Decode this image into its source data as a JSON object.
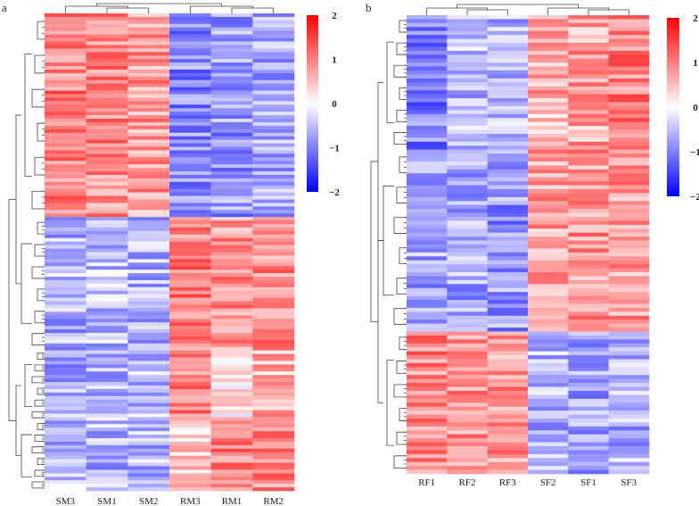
{
  "panel_a_letter": "a",
  "panel_b_letter": "b",
  "colorbar_ticks": [
    "2",
    "1",
    "0",
    "−1",
    "−2"
  ],
  "colorscale": {
    "low": "#0000ff",
    "mid": "#ffffff",
    "high": "#ff0000",
    "min": -2,
    "max": 2
  },
  "chart_data": [
    {
      "type": "heatmap",
      "panel": "a",
      "columns": [
        "SM3",
        "SM1",
        "SM2",
        "RM3",
        "RM1",
        "RM2"
      ],
      "clusters": [
        {
          "rows": 58,
          "values": [
            1.0,
            0.9,
            0.8,
            -0.9,
            -0.8,
            -0.7
          ]
        },
        {
          "rows": 38,
          "values": [
            -0.6,
            -0.5,
            -0.6,
            1.0,
            0.8,
            0.9
          ]
        },
        {
          "rows": 20,
          "values": [
            -0.7,
            -0.6,
            -0.5,
            1.0,
            0.2,
            0.6
          ]
        },
        {
          "rows": 20,
          "values": [
            -0.5,
            -0.6,
            -0.6,
            0.4,
            1.0,
            0.9
          ]
        }
      ],
      "value_range": [
        -2,
        2
      ]
    },
    {
      "type": "heatmap",
      "panel": "b",
      "columns": [
        "RF1",
        "RF2",
        "RF3",
        "SF2",
        "SF1",
        "SF3"
      ],
      "clusters": [
        {
          "rows": 34,
          "values": [
            -1.0,
            -0.5,
            -0.6,
            0.6,
            0.7,
            1.0
          ]
        },
        {
          "rows": 46,
          "values": [
            -0.7,
            -0.7,
            -0.8,
            0.7,
            0.8,
            0.8
          ]
        },
        {
          "rows": 36,
          "values": [
            0.9,
            0.9,
            0.8,
            -0.6,
            -0.7,
            -0.6
          ]
        }
      ],
      "value_range": [
        -2,
        2
      ]
    }
  ]
}
